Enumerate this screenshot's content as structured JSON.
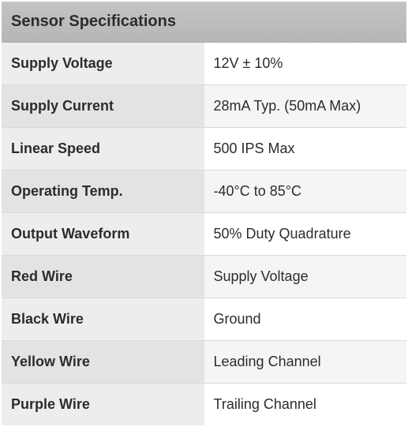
{
  "table": {
    "title": "Sensor Specifications",
    "title_fontsize": 20,
    "label_fontsize": 18,
    "value_fontsize": 18,
    "header_bg": "#bcbcbc",
    "label_bg_odd": "#ededed",
    "label_bg_even": "#e3e3e3",
    "value_bg_odd": "#ffffff",
    "value_bg_even": "#f5f5f5",
    "border_color": "#d9d9d9",
    "text_color": "#2c2c2c",
    "columns": [
      "label",
      "value"
    ],
    "col_widths_pct": [
      45,
      55
    ],
    "rows": [
      {
        "label": "Supply Voltage",
        "value": "12V ± 10%"
      },
      {
        "label": "Supply Current",
        "value": "28mA Typ. (50mA Max)"
      },
      {
        "label": "Linear Speed",
        "value": "500 IPS Max"
      },
      {
        "label": "Operating Temp.",
        "value": "-40°C to 85°C"
      },
      {
        "label": "Output Waveform",
        "value": "50% Duty Quadrature"
      },
      {
        "label": "Red Wire",
        "value": "Supply Voltage"
      },
      {
        "label": "Black Wire",
        "value": "Ground"
      },
      {
        "label": "Yellow Wire",
        "value": "Leading Channel"
      },
      {
        "label": "Purple Wire",
        "value": "Trailing Channel"
      }
    ]
  }
}
